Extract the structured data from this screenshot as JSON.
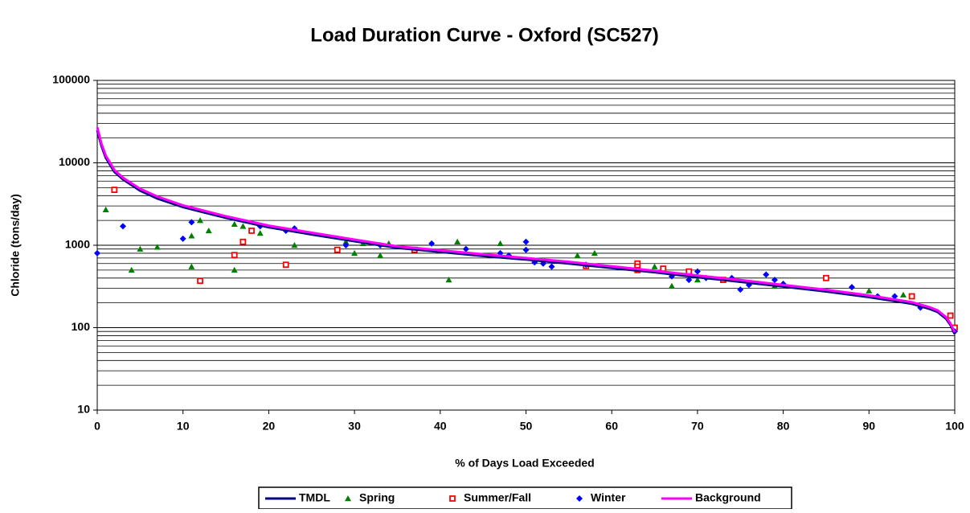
{
  "chart_data": {
    "type": "line",
    "title": "Load Duration Curve - Oxford (SC527)",
    "x_label": "% of Days Load Exceeded",
    "y_label": "Chloride (tons/day)",
    "xlim": [
      0,
      100
    ],
    "xticks": [
      0,
      10,
      20,
      30,
      40,
      50,
      60,
      70,
      80,
      90,
      100
    ],
    "ylim": [
      10,
      100000
    ],
    "yticks": [
      10,
      100,
      1000,
      10000,
      100000
    ],
    "y_log": true,
    "grid": "minor",
    "legend": "bottom",
    "series": [
      {
        "name": "TMDL",
        "color": "#000080",
        "kind": "line",
        "x": [
          0,
          0.5,
          1,
          2,
          3,
          5,
          7,
          10,
          15,
          20,
          25,
          30,
          35,
          40,
          45,
          50,
          55,
          60,
          65,
          70,
          75,
          80,
          85,
          90,
          95,
          97,
          98,
          99,
          99.5,
          100
        ],
        "values": [
          25000,
          16000,
          11500,
          7800,
          6300,
          4600,
          3700,
          2900,
          2150,
          1650,
          1350,
          1120,
          930,
          830,
          740,
          670,
          600,
          530,
          470,
          410,
          360,
          315,
          275,
          235,
          195,
          170,
          155,
          128,
          108,
          84
        ]
      },
      {
        "name": "Spring",
        "color": "#008000",
        "kind": "triangle",
        "x": [
          1,
          4,
          5,
          7,
          11,
          11,
          12,
          13,
          16,
          16,
          17,
          19,
          23,
          29,
          30,
          31,
          33,
          34,
          41,
          42,
          47,
          56,
          58,
          65,
          67,
          70,
          79,
          90,
          94
        ],
        "values": [
          2700,
          500,
          900,
          950,
          550,
          1300,
          2000,
          1500,
          1800,
          500,
          1700,
          1400,
          1000,
          1100,
          800,
          1050,
          750,
          1050,
          380,
          1100,
          1050,
          750,
          800,
          550,
          320,
          380,
          320,
          280,
          250
        ]
      },
      {
        "name": "Summer/Fall",
        "color": "#ff0000",
        "kind": "square",
        "x": [
          2,
          12,
          16,
          17,
          18,
          22,
          28,
          37,
          57,
          63,
          63,
          63,
          66,
          69,
          73,
          85,
          95,
          99.5,
          100
        ],
        "values": [
          4700,
          370,
          760,
          1100,
          1500,
          580,
          880,
          880,
          560,
          600,
          550,
          500,
          520,
          480,
          380,
          400,
          240,
          140,
          100
        ]
      },
      {
        "name": "Winter",
        "color": "#0000ff",
        "kind": "diamond",
        "x": [
          0,
          3,
          10,
          11,
          19,
          22,
          23,
          29,
          33,
          39,
          43,
          47,
          48,
          50,
          50,
          51,
          52,
          53,
          57,
          67,
          69,
          70,
          71,
          74,
          75,
          76,
          78,
          79,
          80,
          88,
          91,
          93,
          96,
          100
        ],
        "values": [
          800,
          1700,
          1200,
          1900,
          1700,
          1500,
          1600,
          1000,
          1000,
          1050,
          900,
          800,
          750,
          1100,
          880,
          620,
          600,
          550,
          580,
          420,
          380,
          480,
          400,
          400,
          290,
          330,
          440,
          380,
          340,
          310,
          240,
          240,
          175,
          90
        ]
      },
      {
        "name": "Background",
        "color": "#ff00ff",
        "kind": "line",
        "x": [
          0,
          0.5,
          1,
          2,
          3,
          5,
          7,
          10,
          15,
          20,
          25,
          30,
          35,
          40,
          45,
          50,
          55,
          60,
          65,
          70,
          75,
          80,
          85,
          90,
          95,
          97,
          98,
          99,
          99.5,
          100
        ],
        "values": [
          27000,
          17000,
          12200,
          8200,
          6600,
          4850,
          3900,
          3050,
          2250,
          1730,
          1420,
          1170,
          970,
          870,
          775,
          700,
          630,
          555,
          490,
          430,
          378,
          330,
          288,
          246,
          204,
          178,
          162,
          134,
          113,
          88
        ]
      }
    ]
  }
}
